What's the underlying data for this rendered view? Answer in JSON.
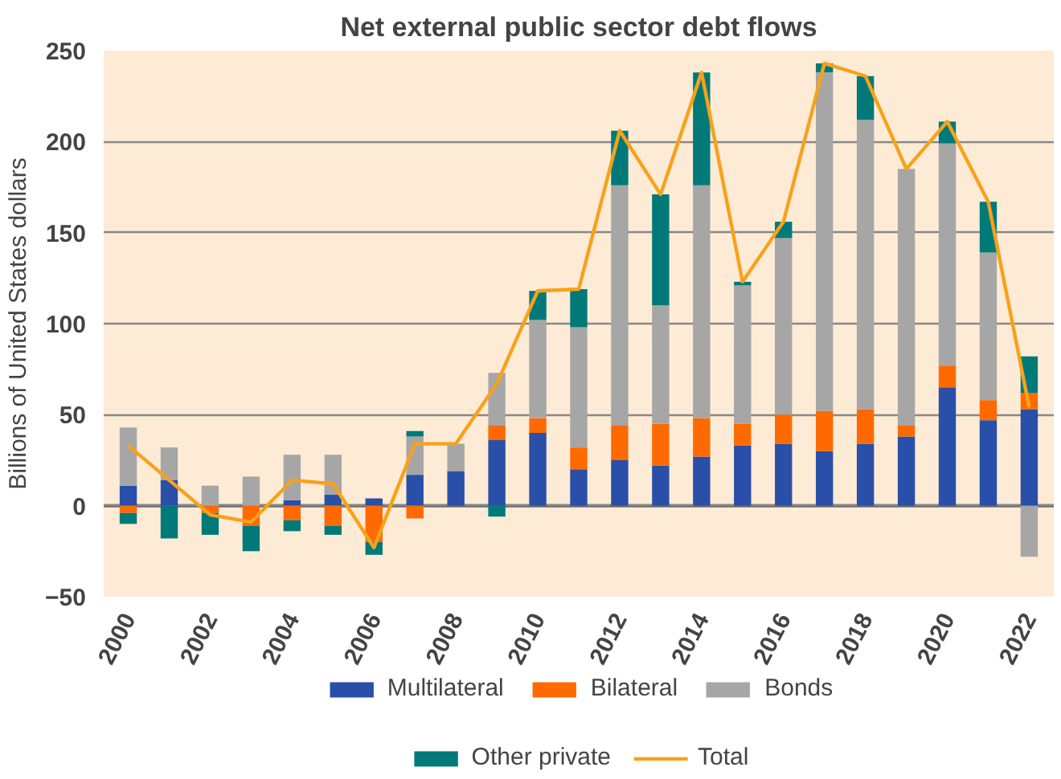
{
  "chart_data": {
    "type": "bar",
    "stacked": true,
    "title": "Net external public sector debt flows",
    "ylabel": "Billions of United States dollars",
    "x": [
      2000,
      2001,
      2002,
      2003,
      2004,
      2005,
      2006,
      2007,
      2008,
      2009,
      2010,
      2011,
      2012,
      2013,
      2014,
      2015,
      2016,
      2017,
      2018,
      2019,
      2020,
      2021,
      2022
    ],
    "xlim": [
      1999.4,
      2022.6
    ],
    "xticks": [
      2000,
      2002,
      2004,
      2006,
      2008,
      2010,
      2012,
      2014,
      2016,
      2018,
      2020,
      2022
    ],
    "ylim": [
      -50,
      250
    ],
    "yticks": [
      -50,
      0,
      50,
      100,
      150,
      200,
      250
    ],
    "grid": "y",
    "legend": "bottom",
    "series": [
      {
        "name": "Multilateral",
        "color": "#2a4fa8",
        "values": [
          11,
          14,
          0,
          0,
          3,
          6,
          4,
          17,
          19,
          36,
          40,
          20,
          25,
          22,
          27,
          33,
          34,
          30,
          34,
          38,
          65,
          47,
          53
        ]
      },
      {
        "name": "Bilateral",
        "color": "#ff6a00",
        "values": [
          -4,
          0,
          -4,
          -11,
          -8,
          -11,
          -20,
          -7,
          0,
          8,
          8,
          12,
          19,
          23,
          21,
          12,
          16,
          22,
          19,
          6,
          12,
          11,
          9
        ]
      },
      {
        "name": "Bonds",
        "color": "#a6a6a6",
        "values": [
          32,
          18,
          11,
          16,
          25,
          22,
          0,
          21,
          15,
          29,
          54,
          66,
          132,
          65,
          128,
          76,
          97,
          186,
          159,
          141,
          122,
          81,
          -28
        ]
      },
      {
        "name": "Other private",
        "color": "#007a78",
        "values": [
          -6,
          -18,
          -12,
          -14,
          -6,
          -5,
          -7,
          3,
          0,
          -6,
          16,
          21,
          30,
          61,
          62,
          2,
          9,
          5,
          24,
          0,
          12,
          28,
          20
        ]
      },
      {
        "name": "Total",
        "type": "line",
        "color": "#f7a21b",
        "values": [
          33,
          14,
          -5,
          -9,
          14,
          12,
          -23,
          34,
          34,
          67,
          118,
          119,
          206,
          171,
          238,
          123,
          156,
          243,
          236,
          185,
          211,
          167,
          54
        ]
      }
    ]
  }
}
